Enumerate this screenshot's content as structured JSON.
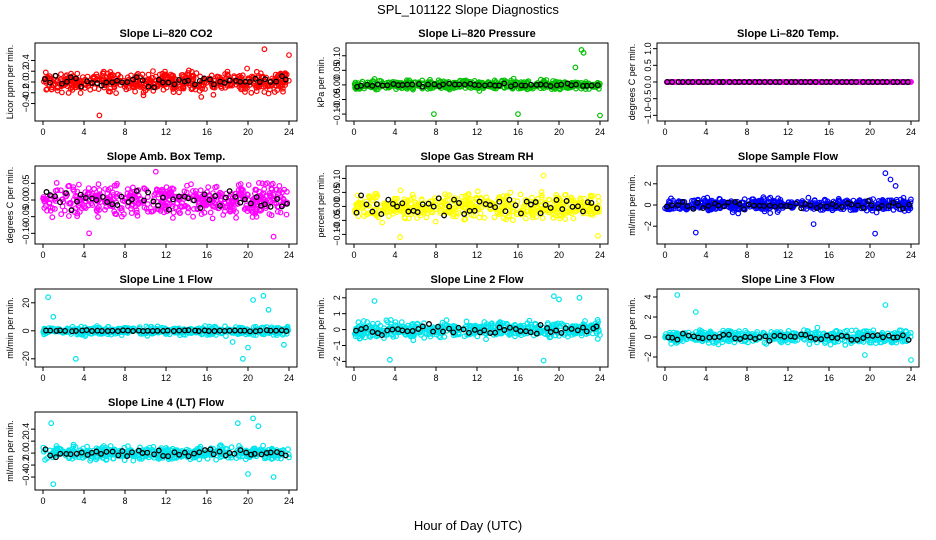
{
  "main_title": "SPL_101122  Slope Diagnostics",
  "x_axis_label": "Hour of Day (UTC)",
  "chart_data": [
    {
      "type": "scatter",
      "title": "Slope Li–820 CO2",
      "ylabel": "Licor ppm per min.",
      "xlim": [
        0,
        24
      ],
      "ylim": [
        -0.65,
        0.65
      ],
      "xticks": [
        0,
        4,
        8,
        12,
        16,
        20,
        24
      ],
      "yticks": [
        -0.4,
        -0.2,
        0.0,
        0.2,
        0.4
      ],
      "ytick_labels": [
        "−0.4",
        "−0.2",
        "0.0",
        "0.2",
        "0.4"
      ],
      "color": "#ff0000",
      "spread": 0.18,
      "mean_spread": 0.1,
      "outliers": [
        [
          5.5,
          -0.62
        ],
        [
          21.6,
          0.61
        ],
        [
          24,
          0.5
        ]
      ]
    },
    {
      "type": "scatter",
      "title": "Slope Li–820 Pressure",
      "ylabel": "kPa per min.",
      "xlim": [
        0,
        24
      ],
      "ylim": [
        -0.11,
        0.13
      ],
      "xticks": [
        0,
        4,
        8,
        12,
        16,
        20,
        24
      ],
      "yticks": [
        -0.1,
        -0.05,
        0.0,
        0.05,
        0.1
      ],
      "ytick_labels": [
        "−0.10",
        "−0.05",
        "0.00",
        "0.05",
        "0.10"
      ],
      "color": "#00c000",
      "spread": 0.014,
      "mean_spread": 0.006,
      "outliers": [
        [
          22.2,
          0.12
        ],
        [
          22.4,
          0.11
        ],
        [
          21.6,
          0.06
        ],
        [
          7.8,
          -0.1
        ],
        [
          16,
          -0.1
        ],
        [
          24,
          -0.105
        ]
      ]
    },
    {
      "type": "scatter",
      "title": "Slope Li–820 Temp.",
      "ylabel": "degrees C per min.",
      "xlim": [
        0,
        24
      ],
      "ylim": [
        -1.05,
        1.05
      ],
      "xticks": [
        0,
        4,
        8,
        12,
        16,
        20,
        24
      ],
      "yticks": [
        -1.0,
        -0.5,
        0.0,
        0.5,
        1.0
      ],
      "ytick_labels": [
        "−1.0",
        "−0.5",
        "0.0",
        "0.5",
        "1.0"
      ],
      "color": "#ff00ff",
      "spread": 0.004,
      "mean_spread": 0.0,
      "outliers": []
    },
    {
      "type": "scatter",
      "title": "Slope Amb. Box Temp.",
      "ylabel": "degrees C per min.",
      "xlim": [
        0,
        24
      ],
      "ylim": [
        -0.12,
        0.09
      ],
      "xticks": [
        0,
        4,
        8,
        12,
        16,
        20,
        24
      ],
      "yticks": [
        -0.1,
        -0.05,
        0.0,
        0.05
      ],
      "ytick_labels": [
        "−0.10",
        "−0.05",
        "0.00",
        "0.05"
      ],
      "color": "#ff00ff",
      "spread": 0.045,
      "mean_spread": 0.025,
      "outliers": [
        [
          11,
          0.085
        ],
        [
          22.5,
          -0.11
        ],
        [
          4.5,
          -0.1
        ]
      ]
    },
    {
      "type": "scatter",
      "title": "Slope Gas Stream RH",
      "ylabel": "percent per min.",
      "xlim": [
        0,
        24
      ],
      "ylim": [
        -0.12,
        0.13
      ],
      "xticks": [
        0,
        4,
        8,
        12,
        16,
        20,
        24
      ],
      "yticks": [
        -0.1,
        -0.05,
        0.0,
        0.05,
        0.1
      ],
      "ytick_labels": [
        "−0.10",
        "−0.05",
        "0.00",
        "0.05",
        "0.10"
      ],
      "color": "#ffff00",
      "spread": 0.045,
      "mean_spread": 0.035,
      "outliers": [
        [
          18.5,
          0.11
        ],
        [
          4.5,
          -0.11
        ],
        [
          23.8,
          -0.105
        ]
      ]
    },
    {
      "type": "scatter",
      "title": "Slope Sample Flow",
      "ylabel": "ml/min per min.",
      "xlim": [
        0,
        24
      ],
      "ylim": [
        -3.3,
        3.3
      ],
      "xticks": [
        0,
        4,
        8,
        12,
        16,
        20,
        24
      ],
      "yticks": [
        -2,
        0,
        2
      ],
      "ytick_labels": [
        "−2",
        "0",
        "2"
      ],
      "color": "#0000ff",
      "spread": 0.55,
      "mean_spread": 0.3,
      "outliers": [
        [
          21.5,
          3.0
        ],
        [
          22,
          2.4
        ],
        [
          22.5,
          1.8
        ],
        [
          20.5,
          -2.7
        ],
        [
          3,
          -2.6
        ],
        [
          14.5,
          -1.8
        ]
      ]
    },
    {
      "type": "scatter",
      "title": "Slope Line 1 Flow",
      "ylabel": "ml/min per min.",
      "xlim": [
        0,
        24
      ],
      "ylim": [
        -23,
        27
      ],
      "xticks": [
        0,
        4,
        8,
        12,
        16,
        20,
        24
      ],
      "yticks": [
        -20,
        0,
        20
      ],
      "ytick_labels": [
        "−20",
        "0",
        "20"
      ],
      "color": "#00e5ee",
      "spread": 2.8,
      "mean_spread": 0.4,
      "outliers": [
        [
          0.5,
          24
        ],
        [
          3.2,
          -20
        ],
        [
          19.5,
          -20
        ],
        [
          20.5,
          22
        ],
        [
          21.5,
          25
        ],
        [
          23.5,
          -10
        ],
        [
          1,
          10
        ],
        [
          20,
          -12
        ],
        [
          22,
          15
        ],
        [
          18.5,
          -8
        ]
      ]
    },
    {
      "type": "scatter",
      "title": "Slope Line 2 Flow",
      "ylabel": "ml/min per min.",
      "xlim": [
        0,
        24
      ],
      "ylim": [
        -2.1,
        2.3
      ],
      "xticks": [
        0,
        4,
        8,
        12,
        16,
        20,
        24
      ],
      "yticks": [
        -2,
        -1,
        0,
        1,
        2
      ],
      "ytick_labels": [
        "−2",
        "−1",
        "0",
        "1",
        "2"
      ],
      "color": "#00e5ee",
      "spread": 0.45,
      "mean_spread": 0.3,
      "outliers": [
        [
          18.5,
          -1.95
        ],
        [
          19.5,
          2.1
        ],
        [
          20,
          1.9
        ],
        [
          22,
          2.0
        ],
        [
          3.5,
          -1.9
        ],
        [
          2,
          1.8
        ]
      ]
    },
    {
      "type": "scatter",
      "title": "Slope Line 3 Flow",
      "ylabel": "ml/min per min.",
      "xlim": [
        0,
        24
      ],
      "ylim": [
        -2.6,
        4.4
      ],
      "xticks": [
        0,
        4,
        8,
        12,
        16,
        20,
        24
      ],
      "yticks": [
        -2,
        0,
        2,
        4
      ],
      "ytick_labels": [
        "−2",
        "0",
        "2",
        "4"
      ],
      "color": "#00e5ee",
      "spread": 0.6,
      "mean_spread": 0.35,
      "outliers": [
        [
          1.2,
          4.2
        ],
        [
          24,
          -2.3
        ],
        [
          21.5,
          3.2
        ],
        [
          3,
          2.5
        ],
        [
          19.5,
          -1.8
        ]
      ]
    },
    {
      "type": "scatter",
      "title": "Slope Line 4 (LT) Flow",
      "ylabel": "ml/min per min.",
      "xlim": [
        0,
        24
      ],
      "ylim": [
        -0.55,
        0.62
      ],
      "xticks": [
        0,
        4,
        8,
        12,
        16,
        20,
        24
      ],
      "yticks": [
        -0.4,
        -0.2,
        0.0,
        0.2,
        0.4
      ],
      "ytick_labels": [
        "−0.4",
        "−0.2",
        "0.0",
        "0.2",
        "0.4"
      ],
      "color": "#00e5ee",
      "spread": 0.1,
      "mean_spread": 0.07,
      "outliers": [
        [
          0.8,
          0.5
        ],
        [
          1,
          -0.52
        ],
        [
          19,
          0.5
        ],
        [
          20.5,
          0.58
        ],
        [
          21,
          0.45
        ],
        [
          22.5,
          -0.4
        ],
        [
          20,
          -0.35
        ]
      ]
    }
  ]
}
